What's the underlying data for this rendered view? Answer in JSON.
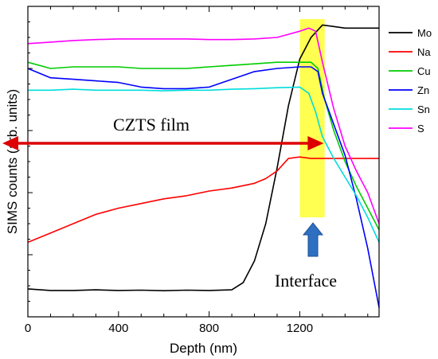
{
  "chart_data": {
    "type": "line",
    "title": "",
    "xlabel": "Depth (nm)",
    "ylabel": "SIMS counts (arb. units)",
    "xlim": [
      0,
      1550
    ],
    "ylim": [
      0,
      100
    ],
    "xticks": [
      0,
      400,
      800,
      1200
    ],
    "yticks_shown": false,
    "grid": false,
    "legend_position": "right",
    "series": [
      {
        "name": "Mo",
        "color": "#000000",
        "x": [
          0,
          100,
          200,
          300,
          400,
          500,
          600,
          700,
          800,
          900,
          950,
          1000,
          1050,
          1100,
          1150,
          1200,
          1250,
          1300,
          1350,
          1400,
          1450,
          1500,
          1550
        ],
        "y": [
          9,
          8.5,
          8.5,
          8.7,
          8.5,
          8.6,
          8.4,
          8.6,
          8.5,
          8.7,
          11,
          18,
          30,
          48,
          68,
          83,
          90,
          94,
          93.5,
          93,
          93,
          93,
          93
        ]
      },
      {
        "name": "Na",
        "color": "#ff0000",
        "x": [
          0,
          100,
          200,
          300,
          400,
          500,
          600,
          700,
          800,
          900,
          1000,
          1050,
          1100,
          1150,
          1200,
          1250,
          1300,
          1400,
          1500,
          1550
        ],
        "y": [
          24,
          27,
          30,
          33,
          35,
          36.5,
          38,
          39,
          40.5,
          41.5,
          43,
          44.5,
          47,
          51,
          51.5,
          51,
          51,
          51,
          51,
          51
        ]
      },
      {
        "name": "Cu",
        "color": "#00cc00",
        "x": [
          0,
          100,
          200,
          300,
          400,
          500,
          600,
          700,
          800,
          900,
          1000,
          1100,
          1200,
          1250,
          1280,
          1310,
          1350,
          1400,
          1450,
          1500,
          1550
        ],
        "y": [
          82,
          80,
          80.5,
          80.5,
          80.5,
          80,
          80,
          80,
          80.5,
          81,
          81.5,
          82,
          82,
          82,
          80,
          70,
          60,
          50,
          42,
          35,
          28
        ]
      },
      {
        "name": "Zn",
        "color": "#0000ff",
        "x": [
          0,
          100,
          200,
          300,
          400,
          500,
          600,
          700,
          800,
          900,
          1000,
          1100,
          1200,
          1250,
          1280,
          1300,
          1350,
          1400,
          1450,
          1500,
          1550
        ],
        "y": [
          80,
          77,
          76.5,
          76,
          75.5,
          74,
          73.5,
          73.5,
          74,
          76.5,
          79,
          80,
          80.5,
          80.5,
          79,
          72,
          62,
          52,
          38,
          22,
          3
        ]
      },
      {
        "name": "Sn",
        "color": "#00dddd",
        "x": [
          0,
          100,
          200,
          300,
          400,
          500,
          600,
          700,
          800,
          900,
          1000,
          1100,
          1200,
          1240,
          1270,
          1300,
          1350,
          1400,
          1450,
          1500,
          1550
        ],
        "y": [
          73,
          73,
          73.3,
          73,
          73,
          73,
          72.8,
          73,
          73,
          73.3,
          73.5,
          73.8,
          74,
          72,
          66,
          58,
          51,
          45,
          39,
          32,
          24
        ]
      },
      {
        "name": "S",
        "color": "#ff00ff",
        "x": [
          0,
          100,
          200,
          300,
          400,
          500,
          600,
          700,
          800,
          900,
          1000,
          1100,
          1150,
          1200,
          1240,
          1270,
          1300,
          1350,
          1400,
          1450,
          1500,
          1550
        ],
        "y": [
          88,
          88.5,
          89,
          89.3,
          89.5,
          89.5,
          89.5,
          89.5,
          89.3,
          89.3,
          89.5,
          90,
          91,
          92,
          93,
          92,
          82,
          67,
          55,
          47,
          40,
          30
        ]
      }
    ],
    "annotations": {
      "film_label": "CZTS film",
      "interface_label": "Interface",
      "film_arrow_x_range": [
        0,
        1200
      ],
      "highlight_x_range": [
        1200,
        1310
      ],
      "colors": {
        "arrow": "#dd0000",
        "highlight": "#ffff33",
        "interface_arrow": "#2e6fc1"
      }
    }
  }
}
